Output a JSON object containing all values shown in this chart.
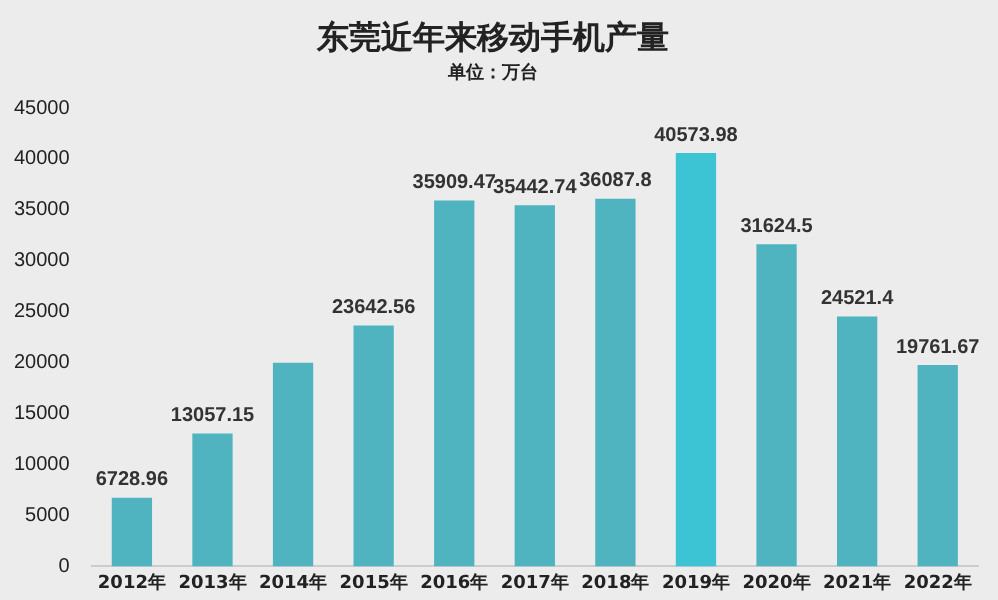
{
  "chart_data": {
    "type": "bar",
    "title": "东莞近年来移动手机产量",
    "subtitle": "单位：万台",
    "categories": [
      "2012年",
      "2013年",
      "2014年",
      "2015年",
      "2016年",
      "2017年",
      "2018年",
      "2019年",
      "2020年",
      "2021年",
      "2022年"
    ],
    "values": [
      6728.96,
      13057.15,
      20000,
      23642.56,
      35909.47,
      35442.74,
      36087.8,
      40573.98,
      31624.5,
      24521.4,
      19761.67
    ],
    "value_labels": [
      "6728.96",
      "13057.15",
      null,
      "23642.56",
      "35909.47",
      "35442.74",
      "36087.8",
      "40573.98",
      "31624.5",
      "24521.4",
      "19761.67"
    ],
    "colors": [
      "#4fb4c0",
      "#4fb4c0",
      "#4fb4c0",
      "#4fb4c0",
      "#4fb4c0",
      "#4fb4c0",
      "#4fb4c0",
      "#3cc4d4",
      "#4fb4c0",
      "#4fb4c0",
      "#4fb4c0"
    ],
    "ylim": [
      0,
      45000
    ],
    "yticks": [
      0,
      5000,
      10000,
      15000,
      20000,
      25000,
      30000,
      35000,
      40000,
      45000
    ],
    "grid": false
  }
}
